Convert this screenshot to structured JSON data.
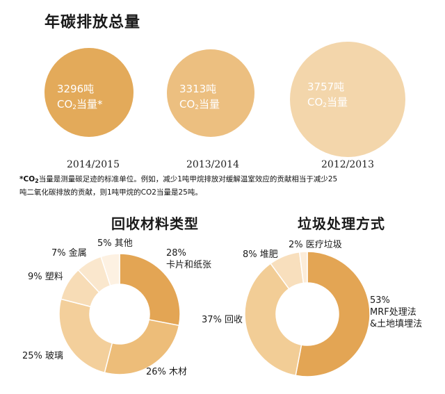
{
  "title": "年碳排放总量",
  "colors": {
    "circle_2014": "#e3aa5a",
    "circle_2013": "#ecbf80",
    "circle_2012": "#f3d6ab",
    "donut_palette": [
      "#e3a554",
      "#edbd79",
      "#f4d19c",
      "#f8e0bf",
      "#fbebd6",
      "#fdf3e6"
    ]
  },
  "chart_data": [
    {
      "type": "bubble",
      "title": "年碳排放总量",
      "unit_line2_prefix": "CO",
      "unit_line2_sub": "2",
      "series": [
        {
          "category": "2014/2015",
          "value": 3296,
          "line1": "3296吨",
          "line2_suffix": "当量*"
        },
        {
          "category": "2013/2014",
          "value": 3313,
          "line1": "3313吨",
          "line2_suffix": "当量"
        },
        {
          "category": "2012/2013",
          "value": 3757,
          "line1": "3757吨",
          "line2_suffix": "当量"
        }
      ]
    },
    {
      "type": "pie",
      "title": "回收材料类型",
      "slices": [
        {
          "pct": "28%",
          "name": "卡片和纸张",
          "value": 28,
          "color": "#e3a554"
        },
        {
          "pct": "26%",
          "name": "木材",
          "value": 26,
          "color": "#edbd79"
        },
        {
          "pct": "25%",
          "name": "玻璃",
          "value": 25,
          "color": "#f3cf9b"
        },
        {
          "pct": "9%",
          "name": "塑料",
          "value": 9,
          "color": "#f7dcb6"
        },
        {
          "pct": "7%",
          "name": "金属",
          "value": 7,
          "color": "#fae7cd"
        },
        {
          "pct": "5%",
          "name": "其他",
          "value": 5,
          "color": "#fdf1e2"
        }
      ]
    },
    {
      "type": "pie",
      "title": "垃圾处理方式",
      "slices": [
        {
          "pct": "53%",
          "name": "MRF处理法",
          "name2": "&土地填埋法",
          "value": 53,
          "color": "#e3a554"
        },
        {
          "pct": "37%",
          "name": "回收",
          "value": 37,
          "color": "#f2cd96"
        },
        {
          "pct": "8%",
          "name": "堆肥",
          "value": 8,
          "color": "#f8dfbd"
        },
        {
          "pct": "2%",
          "name": "医疗垃圾",
          "value": 2,
          "color": "#fcecd8"
        }
      ]
    }
  ],
  "footnote": {
    "star_prefix": "*CO",
    "star_sub": "2",
    "line1_rest": "当量是测量碳足迹的标准单位。例如，减少1吨甲烷排放对缓解温室效应的贡献相当于减少25",
    "line2": "吨二氧化碳排放的贡献，则1吨甲烷的CO2当量是25吨。"
  }
}
